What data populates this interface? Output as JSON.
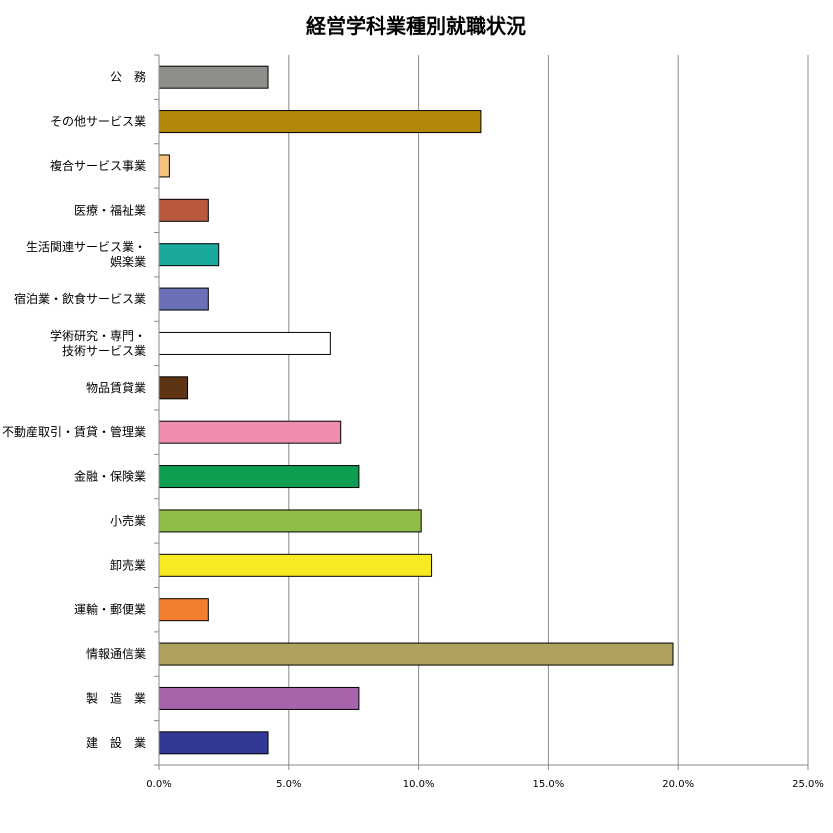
{
  "chart_data": {
    "type": "bar",
    "orientation": "horizontal",
    "title": "経営学科業種別就職状況",
    "xlabel": "",
    "ylabel": "",
    "xlim": [
      0,
      25
    ],
    "x_ticks": [
      0,
      5,
      10,
      15,
      20,
      25
    ],
    "x_tick_labels": [
      "0.0%",
      "5.0%",
      "10.0%",
      "15.0%",
      "20.0%",
      "25.0%"
    ],
    "grid": true,
    "legend": false,
    "categories": [
      [
        "公　務"
      ],
      [
        "その他サービス業"
      ],
      [
        "複合サービス事業"
      ],
      [
        "医療・福祉業"
      ],
      [
        "生活関連サービス業・",
        "娯楽業"
      ],
      [
        "宿泊業・飲食サービス業"
      ],
      [
        "学術研究・専門・",
        "技術サービス業"
      ],
      [
        "物品賃貸業"
      ],
      [
        "不動産取引・賃貸・管理業"
      ],
      [
        "金融・保険業"
      ],
      [
        "小売業"
      ],
      [
        "卸売業"
      ],
      [
        "運輸・郵便業"
      ],
      [
        "情報通信業"
      ],
      [
        "製　造　業"
      ],
      [
        "建　設　業"
      ]
    ],
    "values": [
      4.2,
      12.4,
      0.4,
      1.9,
      2.3,
      1.9,
      6.6,
      1.1,
      7.0,
      7.7,
      10.1,
      10.5,
      1.9,
      19.8,
      7.7,
      4.2
    ],
    "colors": [
      "#8e8e8a",
      "#b3870a",
      "#f5c27e",
      "#b95a3e",
      "#1aa99d",
      "#6b6fb5",
      "#ffffff",
      "#5e3414",
      "#f08cae",
      "#0e9e52",
      "#90bd4a",
      "#f7ea22",
      "#f07f2f",
      "#aea05d",
      "#a864ab",
      "#323893"
    ]
  }
}
